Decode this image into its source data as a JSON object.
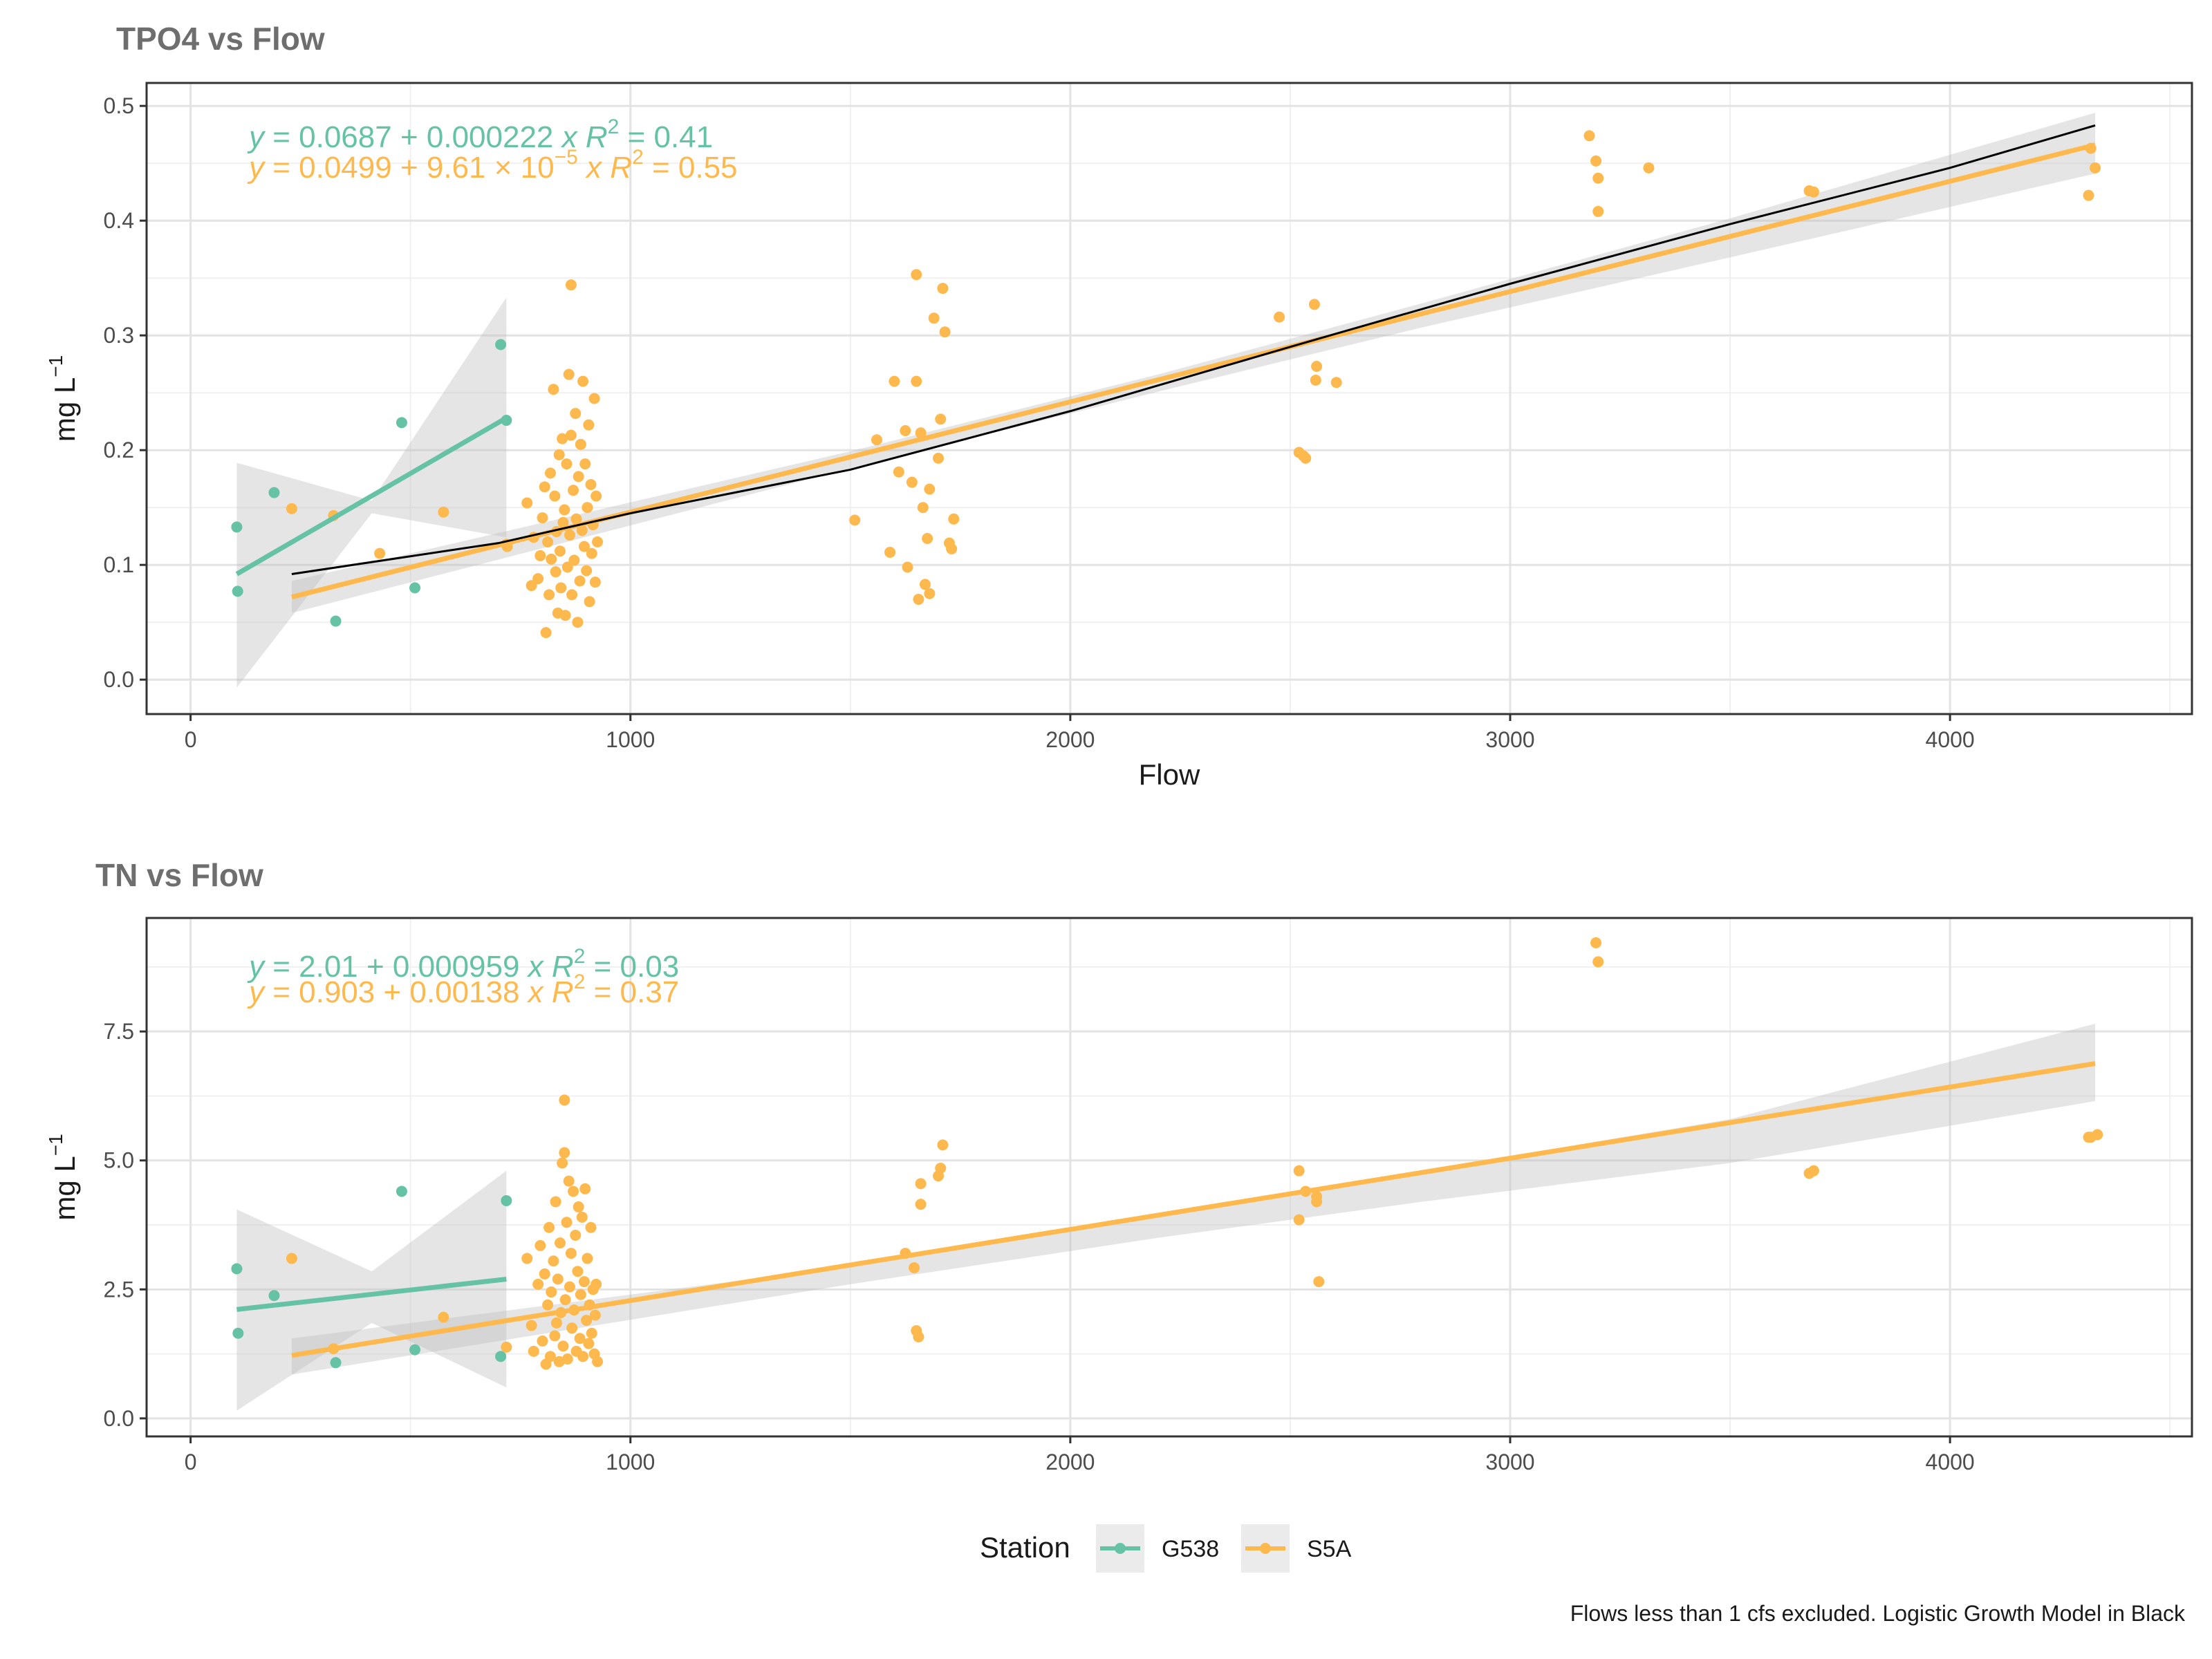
{
  "colors": {
    "G538": "#66c2a5",
    "S5A": "#fdb94d",
    "logistic": "#000000",
    "ribbon": "#bdbdbd"
  },
  "caption": "Flows less than 1 cfs excluded. Logistic Growth Model in Black",
  "legend": {
    "title": "Station",
    "items": [
      "G538",
      "S5A"
    ],
    "placement": "bottom"
  },
  "chart_data": [
    {
      "type": "scatter",
      "title": "TPO4 vs Flow",
      "xlabel": "Flow",
      "ylabel": "mg L",
      "ylabel_exp": "−1",
      "xlim": [
        -100,
        4550
      ],
      "ylim": [
        -0.03,
        0.52
      ],
      "x_ticks": [
        0,
        1000,
        2000,
        3000,
        4000
      ],
      "y_ticks": [
        0.0,
        0.1,
        0.2,
        0.3,
        0.4,
        0.5
      ],
      "y_tick_labels": [
        "0.0",
        "0.1",
        "0.2",
        "0.3",
        "0.4",
        "0.5"
      ],
      "equations": [
        {
          "station": "G538",
          "text": "y = 0.0687 + 0.000222 x",
          "r2_prefix": "R",
          "r2_sup": "2",
          "r2_value": " = 0.41"
        },
        {
          "station": "S5A",
          "text": "y = 0.0499 + 9.61 × 10",
          "exp": "−5",
          "text_after": " x",
          "r2_prefix": "R",
          "r2_sup": "2",
          "r2_value": " = 0.55"
        }
      ],
      "series": [
        {
          "name": "G538",
          "points": [
            [
              105,
              0.133
            ],
            [
              107,
              0.077
            ],
            [
              190,
              0.163
            ],
            [
              330,
              0.051
            ],
            [
              480,
              0.224
            ],
            [
              510,
              0.08
            ],
            [
              705,
              0.292
            ],
            [
              718,
              0.226
            ]
          ],
          "fit": {
            "x": [
              105,
              718
            ],
            "intercept": 0.0687,
            "slope": 0.000222
          },
          "ci": {
            "x": [
              105,
              412,
              718
            ],
            "lower": [
              -0.007,
              0.145,
              0.124
            ],
            "upper": [
              0.189,
              0.156,
              0.333
            ]
          }
        },
        {
          "name": "S5A",
          "points": [
            [
              230,
              0.149
            ],
            [
              325,
              0.143
            ],
            [
              430,
              0.11
            ],
            [
              575,
              0.146
            ],
            [
              718,
              0.118
            ],
            [
              720,
              0.116
            ],
            [
              765,
              0.154
            ],
            [
              775,
              0.082
            ],
            [
              780,
              0.124
            ],
            [
              790,
              0.088
            ],
            [
              795,
              0.108
            ],
            [
              800,
              0.141
            ],
            [
              805,
              0.168
            ],
            [
              808,
              0.041
            ],
            [
              812,
              0.12
            ],
            [
              815,
              0.074
            ],
            [
              818,
              0.18
            ],
            [
              820,
              0.105
            ],
            [
              825,
              0.253
            ],
            [
              828,
              0.16
            ],
            [
              830,
              0.094
            ],
            [
              832,
              0.129
            ],
            [
              835,
              0.058
            ],
            [
              838,
              0.196
            ],
            [
              840,
              0.112
            ],
            [
              842,
              0.08
            ],
            [
              845,
              0.21
            ],
            [
              847,
              0.137
            ],
            [
              850,
              0.148
            ],
            [
              852,
              0.056
            ],
            [
              855,
              0.188
            ],
            [
              857,
              0.098
            ],
            [
              860,
              0.266
            ],
            [
              862,
              0.126
            ],
            [
              865,
              0.213
            ],
            [
              867,
              0.074
            ],
            [
              870,
              0.165
            ],
            [
              872,
              0.104
            ],
            [
              875,
              0.232
            ],
            [
              877,
              0.14
            ],
            [
              880,
              0.05
            ],
            [
              882,
              0.177
            ],
            [
              885,
              0.086
            ],
            [
              887,
              0.205
            ],
            [
              890,
              0.13
            ],
            [
              892,
              0.26
            ],
            [
              895,
              0.116
            ],
            [
              897,
              0.188
            ],
            [
              900,
              0.095
            ],
            [
              902,
              0.15
            ],
            [
              905,
              0.222
            ],
            [
              907,
              0.068
            ],
            [
              910,
              0.17
            ],
            [
              912,
              0.11
            ],
            [
              915,
              0.135
            ],
            [
              918,
              0.245
            ],
            [
              920,
              0.085
            ],
            [
              922,
              0.16
            ],
            [
              925,
              0.12
            ],
            [
              865,
              0.344
            ],
            [
              1510,
              0.139
            ],
            [
              1560,
              0.209
            ],
            [
              1590,
              0.111
            ],
            [
              1600,
              0.26
            ],
            [
              1610,
              0.181
            ],
            [
              1625,
              0.217
            ],
            [
              1630,
              0.098
            ],
            [
              1640,
              0.172
            ],
            [
              1650,
              0.26
            ],
            [
              1650,
              0.353
            ],
            [
              1655,
              0.07
            ],
            [
              1660,
              0.215
            ],
            [
              1665,
              0.15
            ],
            [
              1670,
              0.083
            ],
            [
              1675,
              0.123
            ],
            [
              1680,
              0.166
            ],
            [
              1680,
              0.075
            ],
            [
              1690,
              0.315
            ],
            [
              1700,
              0.193
            ],
            [
              1705,
              0.227
            ],
            [
              1710,
              0.341
            ],
            [
              1715,
              0.303
            ],
            [
              1725,
              0.119
            ],
            [
              1730,
              0.114
            ],
            [
              1735,
              0.14
            ],
            [
              2475,
              0.316
            ],
            [
              2520,
              0.198
            ],
            [
              2530,
              0.195
            ],
            [
              2535,
              0.193
            ],
            [
              2555,
              0.327
            ],
            [
              2558,
              0.261
            ],
            [
              2560,
              0.273
            ],
            [
              2605,
              0.259
            ],
            [
              3180,
              0.474
            ],
            [
              3195,
              0.452
            ],
            [
              3200,
              0.437
            ],
            [
              3200,
              0.408
            ],
            [
              3315,
              0.446
            ],
            [
              3680,
              0.426
            ],
            [
              3690,
              0.425
            ],
            [
              4315,
              0.422
            ],
            [
              4320,
              0.463
            ],
            [
              4330,
              0.446
            ]
          ],
          "fit": {
            "x": [
              230,
              4330
            ],
            "intercept": 0.0499,
            "slope": 9.61e-05
          },
          "ci": {
            "x": [
              230,
              1500,
              2200,
              2800,
              3500,
              4330
            ],
            "lower": [
              0.058,
              0.184,
              0.251,
              0.307,
              0.368,
              0.441
            ],
            "upper": [
              0.086,
              0.199,
              0.266,
              0.328,
              0.402,
              0.494
            ]
          }
        },
        {
          "name": "Logistic Growth Model",
          "line": [
            [
              230,
              0.092
            ],
            [
              700,
              0.119
            ],
            [
              1000,
              0.145
            ],
            [
              1500,
              0.183
            ],
            [
              2000,
              0.234
            ],
            [
              2500,
              0.29
            ],
            [
              3000,
              0.345
            ],
            [
              3500,
              0.397
            ],
            [
              4000,
              0.446
            ],
            [
              4330,
              0.483
            ]
          ]
        }
      ]
    },
    {
      "type": "scatter",
      "title": "TN vs Flow",
      "xlabel": "",
      "ylabel": "mg L",
      "ylabel_exp": "−1",
      "xlim": [
        -100,
        4550
      ],
      "ylim": [
        -0.35,
        9.7
      ],
      "x_ticks": [
        0,
        1000,
        2000,
        3000,
        4000
      ],
      "y_ticks": [
        0.0,
        2.5,
        5.0,
        7.5
      ],
      "y_tick_labels": [
        "0.0",
        "2.5",
        "5.0",
        "7.5"
      ],
      "equations": [
        {
          "station": "G538",
          "text": "y = 2.01 + 0.000959 x",
          "r2_prefix": "R",
          "r2_sup": "2",
          "r2_value": " = 0.03"
        },
        {
          "station": "S5A",
          "text": "y = 0.903 + 0.00138 x",
          "r2_prefix": "R",
          "r2_sup": "2",
          "r2_value": " = 0.37"
        }
      ],
      "series": [
        {
          "name": "G538",
          "points": [
            [
              105,
              2.9
            ],
            [
              108,
              1.65
            ],
            [
              190,
              2.38
            ],
            [
              330,
              1.08
            ],
            [
              480,
              4.4
            ],
            [
              510,
              1.33
            ],
            [
              705,
              1.2
            ],
            [
              718,
              4.22
            ]
          ],
          "fit": {
            "x": [
              105,
              718
            ],
            "intercept": 2.01,
            "slope": 0.000959
          },
          "ci": {
            "x": [
              105,
              412,
              718
            ],
            "lower": [
              0.15,
              1.85,
              0.6
            ],
            "upper": [
              4.05,
              2.85,
              4.8
            ]
          }
        },
        {
          "name": "S5A",
          "points": [
            [
              230,
              3.1
            ],
            [
              325,
              1.35
            ],
            [
              575,
              1.96
            ],
            [
              718,
              1.38
            ],
            [
              765,
              3.1
            ],
            [
              775,
              1.8
            ],
            [
              780,
              1.3
            ],
            [
              790,
              2.6
            ],
            [
              795,
              3.35
            ],
            [
              800,
              1.5
            ],
            [
              805,
              2.8
            ],
            [
              808,
              1.05
            ],
            [
              812,
              2.2
            ],
            [
              815,
              3.7
            ],
            [
              818,
              1.2
            ],
            [
              820,
              2.45
            ],
            [
              825,
              3.05
            ],
            [
              828,
              1.6
            ],
            [
              830,
              4.2
            ],
            [
              832,
              1.85
            ],
            [
              835,
              2.7
            ],
            [
              838,
              1.1
            ],
            [
              840,
              3.4
            ],
            [
              842,
              2.05
            ],
            [
              845,
              4.95
            ],
            [
              847,
              1.4
            ],
            [
              850,
              5.15
            ],
            [
              852,
              2.3
            ],
            [
              855,
              3.8
            ],
            [
              857,
              1.15
            ],
            [
              860,
              4.6
            ],
            [
              862,
              2.55
            ],
            [
              865,
              3.2
            ],
            [
              867,
              1.75
            ],
            [
              870,
              4.4
            ],
            [
              872,
              2.1
            ],
            [
              875,
              3.55
            ],
            [
              877,
              1.3
            ],
            [
              880,
              2.85
            ],
            [
              882,
              4.1
            ],
            [
              885,
              1.55
            ],
            [
              887,
              2.4
            ],
            [
              890,
              3.9
            ],
            [
              892,
              1.2
            ],
            [
              895,
              2.65
            ],
            [
              897,
              4.45
            ],
            [
              900,
              1.9
            ],
            [
              902,
              3.1
            ],
            [
              905,
              1.45
            ],
            [
              907,
              2.2
            ],
            [
              910,
              3.7
            ],
            [
              912,
              1.65
            ],
            [
              915,
              2.5
            ],
            [
              918,
              1.25
            ],
            [
              920,
              2.0
            ],
            [
              922,
              2.6
            ],
            [
              925,
              1.1
            ],
            [
              850,
              6.17
            ],
            [
              1625,
              3.2
            ],
            [
              1645,
              2.92
            ],
            [
              1650,
              1.7
            ],
            [
              1655,
              1.58
            ],
            [
              1660,
              4.55
            ],
            [
              1660,
              4.15
            ],
            [
              1700,
              4.7
            ],
            [
              1705,
              4.85
            ],
            [
              1710,
              5.3
            ],
            [
              2520,
              4.8
            ],
            [
              2520,
              3.85
            ],
            [
              2535,
              4.4
            ],
            [
              2560,
              4.3
            ],
            [
              2560,
              4.2
            ],
            [
              2565,
              2.65
            ],
            [
              3195,
              9.22
            ],
            [
              3200,
              8.85
            ],
            [
              3680,
              4.75
            ],
            [
              3690,
              4.8
            ],
            [
              4315,
              5.45
            ],
            [
              4320,
              5.45
            ],
            [
              4335,
              5.5
            ]
          ],
          "fit": {
            "x": [
              230,
              4330
            ],
            "intercept": 0.903,
            "slope": 0.00138
          },
          "ci": {
            "x": [
              230,
              1500,
              2200,
              2800,
              3500,
              4330
            ],
            "lower": [
              0.85,
              2.6,
              3.5,
              4.2,
              4.95,
              6.15
            ],
            "upper": [
              1.55,
              2.95,
              3.95,
              4.8,
              5.8,
              7.65
            ]
          }
        }
      ]
    }
  ]
}
